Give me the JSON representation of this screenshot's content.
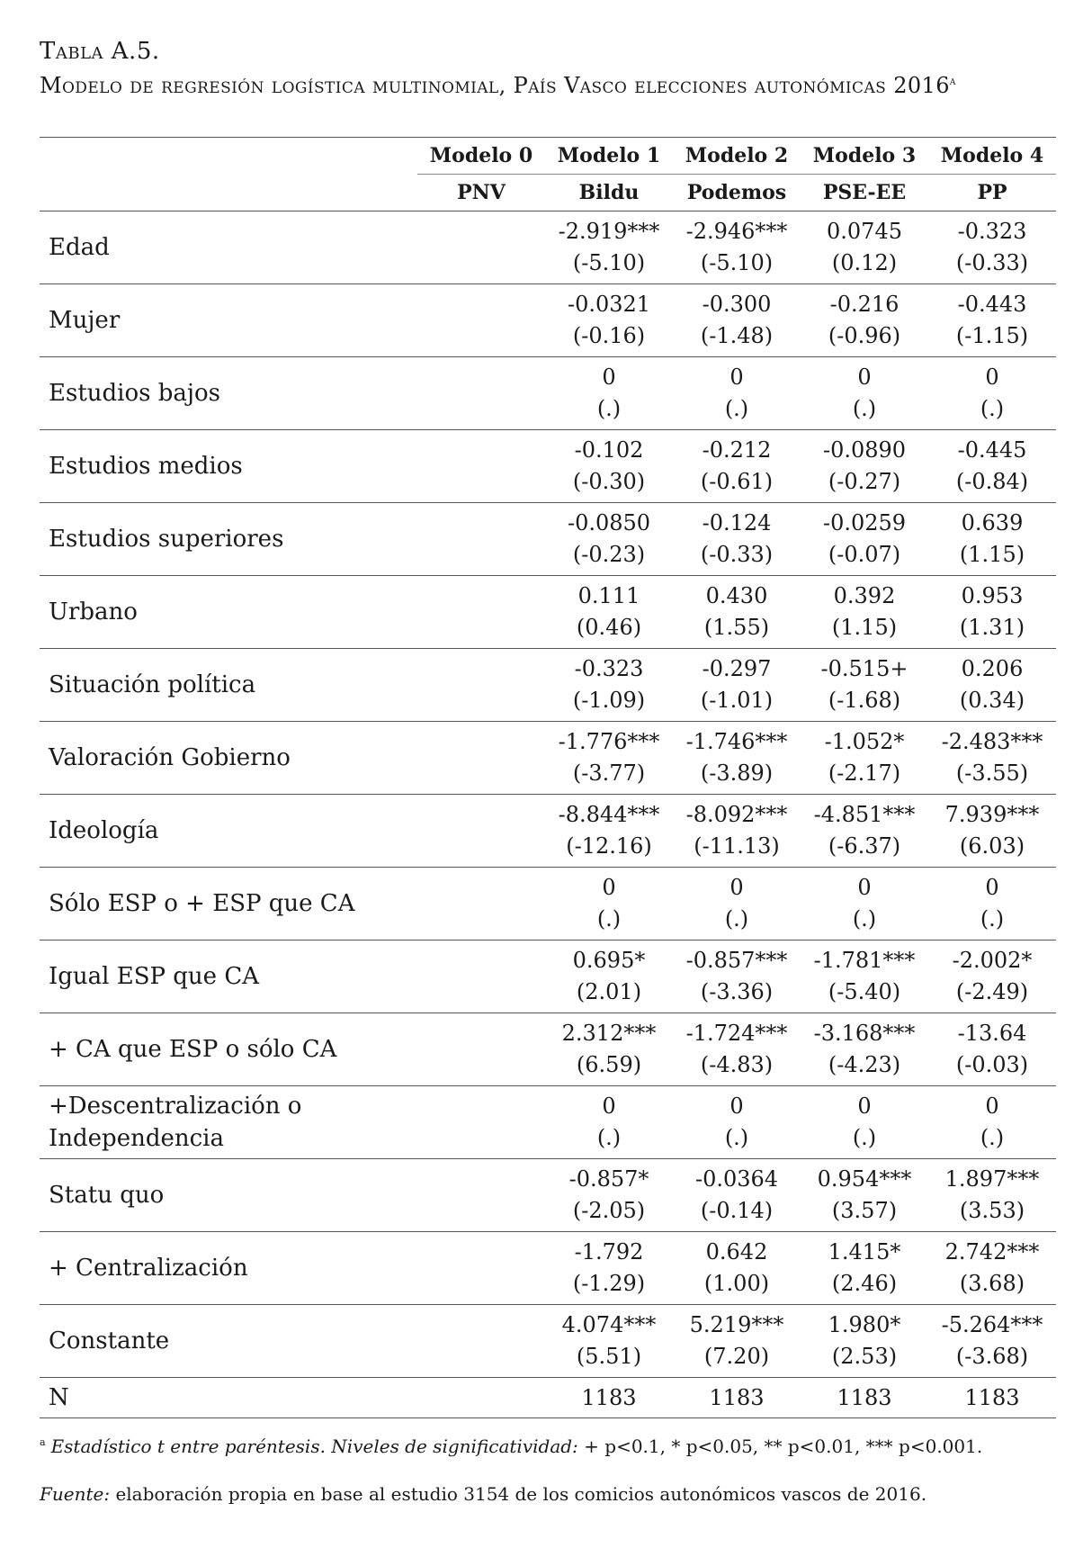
{
  "title": {
    "label": "Tabla A.5.",
    "text": "Modelo de regresión logística multinomial, País Vasco elecciones autonómicas 2016",
    "note_mark": "a"
  },
  "table": {
    "models": [
      "Modelo 0",
      "Modelo 1",
      "Modelo 2",
      "Modelo 3",
      "Modelo 4"
    ],
    "parties": [
      "PNV",
      "Bildu",
      "Podemos",
      "PSE-EE",
      "PP"
    ],
    "rows": [
      {
        "label": "Edad",
        "cells": [
          {
            "coef": "",
            "t": ""
          },
          {
            "coef": "-2.919***",
            "t": "(-5.10)"
          },
          {
            "coef": "-2.946***",
            "t": "(-5.10)"
          },
          {
            "coef": "0.0745",
            "t": "(0.12)"
          },
          {
            "coef": "-0.323",
            "t": "(-0.33)"
          }
        ]
      },
      {
        "label": "Mujer",
        "cells": [
          {
            "coef": "",
            "t": ""
          },
          {
            "coef": "-0.0321",
            "t": "(-0.16)"
          },
          {
            "coef": "-0.300",
            "t": "(-1.48)"
          },
          {
            "coef": "-0.216",
            "t": "(-0.96)"
          },
          {
            "coef": "-0.443",
            "t": "(-1.15)"
          }
        ]
      },
      {
        "label": "Estudios bajos",
        "cells": [
          {
            "coef": "",
            "t": ""
          },
          {
            "coef": "0",
            "t": "(.)"
          },
          {
            "coef": "0",
            "t": "(.)"
          },
          {
            "coef": "0",
            "t": "(.)"
          },
          {
            "coef": "0",
            "t": "(.)"
          }
        ]
      },
      {
        "label": "Estudios medios",
        "cells": [
          {
            "coef": "",
            "t": ""
          },
          {
            "coef": "-0.102",
            "t": "(-0.30)"
          },
          {
            "coef": "-0.212",
            "t": "(-0.61)"
          },
          {
            "coef": "-0.0890",
            "t": "(-0.27)"
          },
          {
            "coef": "-0.445",
            "t": "(-0.84)"
          }
        ]
      },
      {
        "label": "Estudios superiores",
        "cells": [
          {
            "coef": "",
            "t": ""
          },
          {
            "coef": "-0.0850",
            "t": "(-0.23)"
          },
          {
            "coef": "-0.124",
            "t": "(-0.33)"
          },
          {
            "coef": "-0.0259",
            "t": "(-0.07)"
          },
          {
            "coef": "0.639",
            "t": "(1.15)"
          }
        ]
      },
      {
        "label": "Urbano",
        "cells": [
          {
            "coef": "",
            "t": ""
          },
          {
            "coef": "0.111",
            "t": "(0.46)"
          },
          {
            "coef": "0.430",
            "t": "(1.55)"
          },
          {
            "coef": "0.392",
            "t": "(1.15)"
          },
          {
            "coef": "0.953",
            "t": "(1.31)"
          }
        ]
      },
      {
        "label": "Situación política",
        "cells": [
          {
            "coef": "",
            "t": ""
          },
          {
            "coef": "-0.323",
            "t": "(-1.09)"
          },
          {
            "coef": "-0.297",
            "t": "(-1.01)"
          },
          {
            "coef": "-0.515+",
            "t": "(-1.68)"
          },
          {
            "coef": "0.206",
            "t": "(0.34)"
          }
        ]
      },
      {
        "label": "Valoración Gobierno",
        "cells": [
          {
            "coef": "",
            "t": ""
          },
          {
            "coef": "-1.776***",
            "t": "(-3.77)"
          },
          {
            "coef": "-1.746***",
            "t": "(-3.89)"
          },
          {
            "coef": "-1.052*",
            "t": "(-2.17)"
          },
          {
            "coef": "-2.483***",
            "t": "(-3.55)"
          }
        ]
      },
      {
        "label": "Ideología",
        "cells": [
          {
            "coef": "",
            "t": ""
          },
          {
            "coef": "-8.844***",
            "t": "(-12.16)"
          },
          {
            "coef": "-8.092***",
            "t": "(-11.13)"
          },
          {
            "coef": "-4.851***",
            "t": "(-6.37)"
          },
          {
            "coef": "7.939***",
            "t": "(6.03)"
          }
        ]
      },
      {
        "label": "Sólo ESP o + ESP que CA",
        "cells": [
          {
            "coef": "",
            "t": ""
          },
          {
            "coef": "0",
            "t": "(.)"
          },
          {
            "coef": "0",
            "t": "(.)"
          },
          {
            "coef": "0",
            "t": "(.)"
          },
          {
            "coef": "0",
            "t": "(.)"
          }
        ]
      },
      {
        "label": "Igual ESP que CA",
        "cells": [
          {
            "coef": "",
            "t": ""
          },
          {
            "coef": "0.695*",
            "t": "(2.01)"
          },
          {
            "coef": "-0.857***",
            "t": "(-3.36)"
          },
          {
            "coef": "-1.781***",
            "t": "(-5.40)"
          },
          {
            "coef": "-2.002*",
            "t": "(-2.49)"
          }
        ]
      },
      {
        "label": "+ CA que ESP o sólo CA",
        "cells": [
          {
            "coef": "",
            "t": ""
          },
          {
            "coef": "2.312***",
            "t": "(6.59)"
          },
          {
            "coef": "-1.724***",
            "t": "(-4.83)"
          },
          {
            "coef": "-3.168***",
            "t": "(-4.23)"
          },
          {
            "coef": "-13.64",
            "t": "(-0.03)"
          }
        ]
      },
      {
        "label": "+Descentralización o Independencia",
        "cells": [
          {
            "coef": "",
            "t": ""
          },
          {
            "coef": "0",
            "t": "(.)"
          },
          {
            "coef": "0",
            "t": "(.)"
          },
          {
            "coef": "0",
            "t": "(.)"
          },
          {
            "coef": "0",
            "t": "(.)"
          }
        ]
      },
      {
        "label": "Statu quo",
        "cells": [
          {
            "coef": "",
            "t": ""
          },
          {
            "coef": "-0.857*",
            "t": "(-2.05)"
          },
          {
            "coef": "-0.0364",
            "t": "(-0.14)"
          },
          {
            "coef": "0.954***",
            "t": "(3.57)"
          },
          {
            "coef": "1.897***",
            "t": "(3.53)"
          }
        ]
      },
      {
        "label": "+ Centralización",
        "cells": [
          {
            "coef": "",
            "t": ""
          },
          {
            "coef": "-1.792",
            "t": "(-1.29)"
          },
          {
            "coef": "0.642",
            "t": "(1.00)"
          },
          {
            "coef": "1.415*",
            "t": "(2.46)"
          },
          {
            "coef": "2.742***",
            "t": "(3.68)"
          }
        ]
      },
      {
        "label": "Constante",
        "cells": [
          {
            "coef": "",
            "t": ""
          },
          {
            "coef": "4.074***",
            "t": "(5.51)"
          },
          {
            "coef": "5.219***",
            "t": "(7.20)"
          },
          {
            "coef": "1.980*",
            "t": "(2.53)"
          },
          {
            "coef": "-5.264***",
            "t": "(-3.68)"
          }
        ]
      }
    ],
    "n_row": {
      "label": "N",
      "values": [
        "",
        "1183",
        "1183",
        "1183",
        "1183"
      ]
    }
  },
  "footnote": {
    "mark": "a",
    "italic": "Estadístico t entre paréntesis. Niveles de significatividad:",
    "plain": " + p<0.1, * p<0.05, ** p<0.01, *** p<0.001."
  },
  "source": {
    "italic": "Fuente:",
    "plain": " elaboración propia en base al estudio 3154 de los comicios autonómicos vascos de 2016."
  }
}
